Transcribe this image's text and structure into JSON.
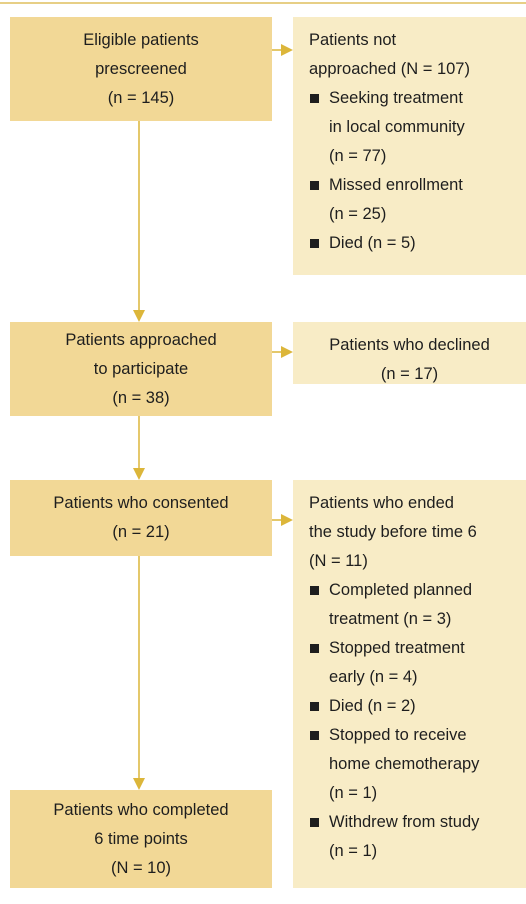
{
  "flow": [
    {
      "main": {
        "lines": [
          "Eligible patients",
          "prescreened",
          "(n = 145)"
        ]
      },
      "side": {
        "lines": [
          "Patients not",
          "approached (N = 107)"
        ],
        "items": [
          [
            "Seeking treatment",
            "in local community",
            "(n = 77)"
          ],
          [
            "Missed enrollment",
            "(n = 25)"
          ],
          [
            "Died (n = 5)"
          ]
        ]
      }
    },
    {
      "main": {
        "lines": [
          "Patients approached",
          "to participate",
          "(n = 38)"
        ]
      },
      "side": {
        "lines": [
          "Patients who declined",
          "(n = 17)"
        ]
      }
    },
    {
      "main": {
        "lines": [
          "Patients who consented",
          "(n = 21)"
        ]
      },
      "side": {
        "lines": [
          "Patients who ended",
          "the study before time 6",
          "(N = 11)"
        ],
        "items": [
          [
            "Completed planned",
            "treatment (n = 3)"
          ],
          [
            "Stopped treatment",
            "early (n = 4)"
          ],
          [
            "Died (n = 2)"
          ],
          [
            "Stopped to receive",
            "home chemotherapy",
            "(n = 1)"
          ],
          [
            "Withdrew from study",
            "(n = 1)"
          ]
        ]
      }
    },
    {
      "main": {
        "lines": [
          "Patients who completed",
          "6 time points",
          "(N = 10)"
        ]
      }
    }
  ]
}
